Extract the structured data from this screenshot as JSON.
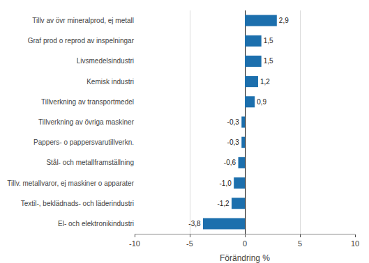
{
  "chart_data": {
    "type": "bar",
    "orientation": "horizontal",
    "categories": [
      "El- och elektronikindustri",
      "Textil-, beklädnads- och läderindustri",
      "Tillv. metallvaror, ej maskiner o apparater",
      "Stål- och metallframställning",
      "Pappers- o pappersvarutillverkn.",
      "Tillverkning av övriga maskiner",
      "Tillverkning av transportmedel",
      "Kemisk industri",
      "Livsmedelsindustri",
      "Graf prod o reprod av inspelningar",
      "Tillv av övr mineralprod, ej metall"
    ],
    "values": [
      -3.8,
      -1.2,
      -1.0,
      -0.6,
      -0.3,
      -0.3,
      0.9,
      1.2,
      1.5,
      1.5,
      2.9
    ],
    "value_labels": [
      "-3,8",
      "-1,2",
      "-1,0",
      "-0,6",
      "-0,3",
      "-0,3",
      "0,9",
      "1,2",
      "1,5",
      "1,5",
      "2,9"
    ],
    "data_labels": true,
    "color": "#1c6fad",
    "xlabel": "Förändring %",
    "xlim": [
      -10,
      10
    ],
    "xticks": [
      -10,
      -5,
      0,
      5,
      10
    ],
    "grid": true
  }
}
